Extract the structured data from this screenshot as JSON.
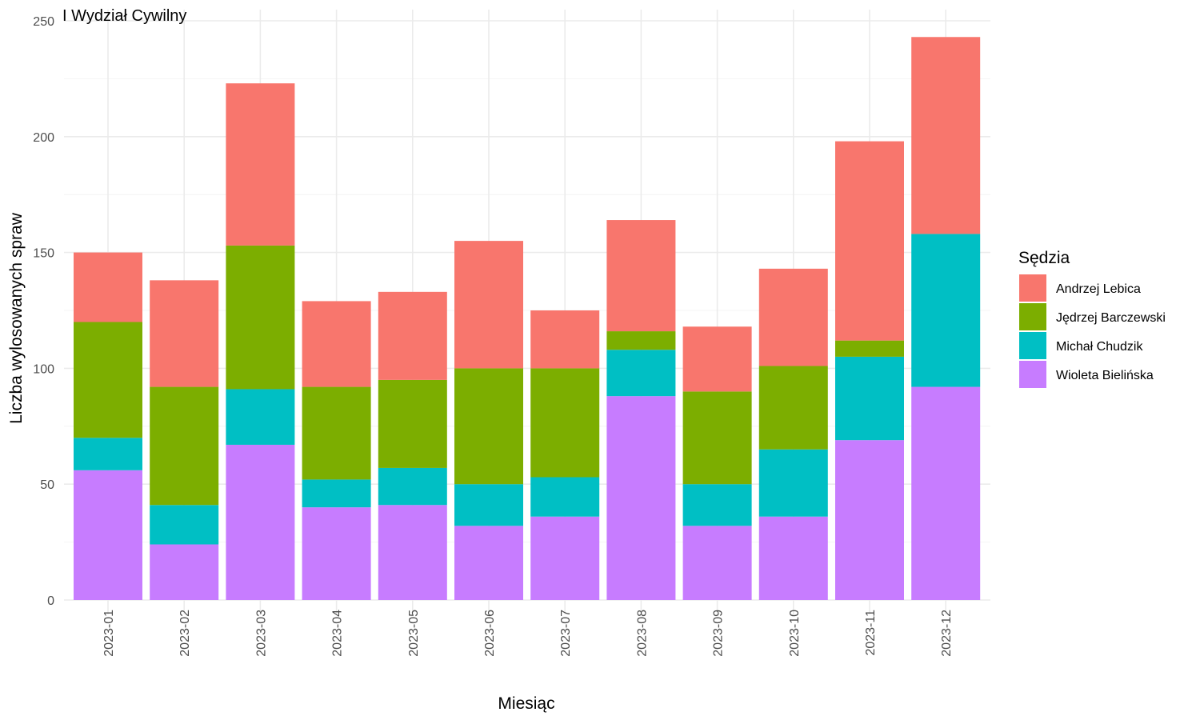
{
  "chart_data": {
    "type": "bar",
    "stacked": true,
    "title": "I Wydział Cywilny",
    "xlabel": "Miesiąc",
    "ylabel": "Liczba wylosowanych spraw",
    "ylim": [
      0,
      250
    ],
    "yticks": [
      0,
      50,
      100,
      150,
      200,
      250
    ],
    "grid": true,
    "legend_position": "right",
    "legend_title": "Sędzia",
    "categories": [
      "2023-01",
      "2023-02",
      "2023-03",
      "2023-04",
      "2023-05",
      "2023-06",
      "2023-07",
      "2023-08",
      "2023-09",
      "2023-10",
      "2023-11",
      "2023-12"
    ],
    "series": [
      {
        "name": "Andrzej Lebica",
        "color": "#F8766D",
        "values": [
          30,
          46,
          70,
          37,
          38,
          55,
          25,
          48,
          28,
          42,
          86,
          85
        ]
      },
      {
        "name": "Jędrzej Barczewski",
        "color": "#7CAE00",
        "values": [
          50,
          51,
          62,
          40,
          38,
          50,
          47,
          8,
          40,
          36,
          7,
          0
        ]
      },
      {
        "name": "Michał Chudzik",
        "color": "#00BFC4",
        "values": [
          14,
          17,
          24,
          12,
          16,
          18,
          17,
          20,
          18,
          29,
          36,
          66
        ]
      },
      {
        "name": "Wioleta Bielińska",
        "color": "#C77CFF",
        "values": [
          56,
          24,
          67,
          40,
          41,
          32,
          36,
          88,
          32,
          36,
          69,
          92
        ]
      }
    ]
  }
}
